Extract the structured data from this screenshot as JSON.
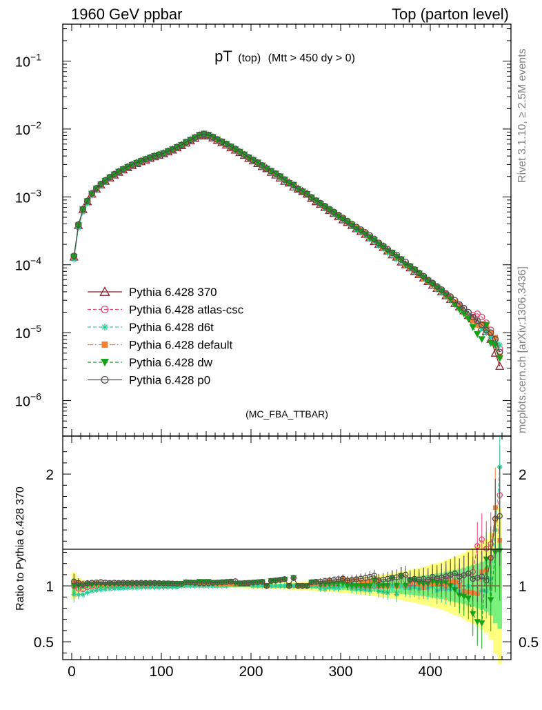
{
  "header": {
    "left": "1960 GeV ppbar",
    "right": "Top (parton level)"
  },
  "side_labels": {
    "rivet": "Rivet 3.1.10, ≥ 2.5M events",
    "mcplots": "mcplots.cern.ch [arXiv:1306.3436]"
  },
  "watermark": "(MC_FBA_TTBAR)",
  "plot_title": {
    "main": "pT",
    "sub1": "(top)",
    "sub2": "(Mtt > 450 dy > 0)"
  },
  "ratio_ylabel": "Ratio to Pythia 6.428 370",
  "colors": {
    "370": "#8b1a2b",
    "atlas-csc": "#e8456e",
    "d6t": "#2ecc9a",
    "default": "#f58231",
    "dw": "#16a21a",
    "p0": "#4d4d4d",
    "band_yellow": "#ffff80",
    "band_green": "#7cf07c"
  },
  "chart_data": [
    {
      "type": "line",
      "panel": "main",
      "yscale": "log",
      "xlim": [
        -10,
        490
      ],
      "ylim": [
        3e-07,
        0.35
      ],
      "yticks": [
        {
          "value": 1e-06,
          "label": "10",
          "exp": "−6"
        },
        {
          "value": 1e-05,
          "label": "10",
          "exp": "−5"
        },
        {
          "value": 0.0001,
          "label": "10",
          "exp": "−4"
        },
        {
          "value": 0.001,
          "label": "10",
          "exp": "−3"
        },
        {
          "value": 0.01,
          "label": "10",
          "exp": "−2"
        },
        {
          "value": 0.1,
          "label": "10",
          "exp": "−1"
        }
      ],
      "legend_position": "lower-left",
      "model": {
        "description_x": [
          2.5,
          7.5,
          12.5,
          17.5,
          22.5,
          27.5,
          32.5,
          37.5,
          42.5,
          47.5,
          52.5,
          57.5,
          62.5,
          67.5,
          72.5,
          77.5,
          82.5,
          87.5,
          92.5,
          97.5,
          102.5,
          107.5,
          112.5,
          117.5,
          122.5,
          127.5,
          132.5,
          137.5,
          142.5,
          147.5,
          152.5,
          157.5,
          162.5,
          167.5,
          172.5,
          177.5,
          182.5,
          187.5,
          192.5,
          197.5,
          202.5,
          207.5,
          212.5,
          217.5,
          222.5,
          227.5,
          232.5,
          237.5,
          242.5,
          247.5,
          252.5,
          257.5,
          262.5,
          267.5,
          272.5,
          277.5,
          282.5,
          287.5,
          292.5,
          297.5,
          302.5,
          307.5,
          312.5,
          317.5,
          322.5,
          327.5,
          332.5,
          337.5,
          342.5,
          347.5,
          352.5,
          357.5,
          362.5,
          367.5,
          372.5,
          377.5,
          382.5,
          387.5,
          392.5,
          397.5,
          402.5,
          407.5,
          412.5,
          417.5,
          422.5,
          427.5,
          432.5,
          437.5,
          442.5,
          447.5,
          452.5,
          457.5,
          462.5,
          467.5,
          472.5,
          477.5
        ]
      },
      "series": [
        {
          "name": "Pythia 6.428 370",
          "key": "370",
          "marker": "triangle-open",
          "dash": "solid",
          "values": [
            0.00013,
            0.00038,
            0.00065,
            0.00085,
            0.0011,
            0.0013,
            0.0015,
            0.0017,
            0.0019,
            0.0021,
            0.0023,
            0.0025,
            0.0027,
            0.0029,
            0.0031,
            0.0033,
            0.0035,
            0.0037,
            0.0039,
            0.0041,
            0.0043,
            0.0046,
            0.0049,
            0.0053,
            0.0057,
            0.0062,
            0.0067,
            0.0073,
            0.0079,
            0.0082,
            0.0079,
            0.0074,
            0.0068,
            0.0063,
            0.0058,
            0.0053,
            0.0049,
            0.0045,
            0.0041,
            0.0037,
            0.0034,
            0.0031,
            0.0028,
            0.0026,
            0.0023,
            0.0021,
            0.0019,
            0.0017,
            0.0016,
            0.0014,
            0.0013,
            0.0012,
            0.0011,
            0.00095,
            0.00085,
            0.00078,
            0.0007,
            0.00063,
            0.00057,
            0.00051,
            0.00046,
            0.00042,
            0.00038,
            0.00034,
            0.00031,
            0.00028,
            0.00025,
            0.00022,
            0.0002,
            0.00018,
            0.00016,
            0.00014,
            0.00013,
            0.00011,
            0.0001,
            9e-05,
            8e-05,
            7.2e-05,
            6.4e-05,
            5.7e-05,
            5e-05,
            4.5e-05,
            4e-05,
            3.5e-05,
            3.1e-05,
            2.7e-05,
            2.4e-05,
            2.1e-05,
            1.8e-05,
            1.6e-05,
            1.4e-05,
            1.2e-05,
            1.05e-05,
            8e-06,
            5e-06,
            3.2e-06
          ]
        },
        {
          "name": "Pythia 6.428 atlas-csc",
          "key": "atlas-csc",
          "marker": "circle-open",
          "dash": "dashed",
          "values": [
            0.00013,
            0.00037,
            0.00063,
            0.00084,
            0.0011,
            0.0013,
            0.0015,
            0.0017,
            0.0019,
            0.0021,
            0.0023,
            0.0025,
            0.0027,
            0.0029,
            0.0031,
            0.0033,
            0.0035,
            0.0037,
            0.0039,
            0.0041,
            0.0043,
            0.0046,
            0.0049,
            0.0053,
            0.0058,
            0.0063,
            0.0068,
            0.0074,
            0.008,
            0.0083,
            0.0081,
            0.0076,
            0.007,
            0.0065,
            0.006,
            0.0055,
            0.0051,
            0.0046,
            0.0042,
            0.0038,
            0.0035,
            0.0032,
            0.0029,
            0.0026,
            0.0024,
            0.0022,
            0.002,
            0.0018,
            0.0016,
            0.0015,
            0.0013,
            0.0012,
            0.0011,
            0.00098,
            0.00088,
            0.00079,
            0.00071,
            0.00064,
            0.00058,
            0.00053,
            0.00048,
            0.00043,
            0.00038,
            0.00034,
            0.00031,
            0.00028,
            0.00025,
            0.00022,
            0.0002,
            0.00018,
            0.00016,
            0.00015,
            0.00013,
            0.00012,
            0.0001,
            9.2e-05,
            8.2e-05,
            7.4e-05,
            6.8e-05,
            5.9e-05,
            5.3e-05,
            4.7e-05,
            4.3e-05,
            3.7e-05,
            3.3e-05,
            2.8e-05,
            2.5e-05,
            2.3e-05,
            2e-05,
            1.8e-05,
            1.9e-05,
            1.7e-05,
            1.4e-05,
            1.1e-05,
            8e-06,
            5.8e-06
          ]
        },
        {
          "name": "Pythia 6.428 d6t",
          "key": "d6t",
          "marker": "star",
          "dash": "dashed",
          "values": [
            0.00012,
            0.00035,
            0.0006,
            0.0008,
            0.00105,
            0.00125,
            0.00145,
            0.00165,
            0.00185,
            0.00205,
            0.00225,
            0.00245,
            0.00265,
            0.00285,
            0.00305,
            0.00325,
            0.00345,
            0.00365,
            0.00385,
            0.00405,
            0.00425,
            0.00455,
            0.00485,
            0.00525,
            0.0057,
            0.0062,
            0.0067,
            0.0073,
            0.0079,
            0.0082,
            0.0079,
            0.0074,
            0.0068,
            0.0063,
            0.0058,
            0.0054,
            0.005,
            0.0046,
            0.0042,
            0.0038,
            0.0034,
            0.0031,
            0.0028,
            0.0026,
            0.0023,
            0.0021,
            0.0019,
            0.0017,
            0.0016,
            0.0014,
            0.0013,
            0.0012,
            0.0011,
            0.00095,
            0.00085,
            0.00076,
            0.00068,
            0.00062,
            0.00056,
            0.0005,
            0.00046,
            0.00042,
            0.00037,
            0.00033,
            0.0003,
            0.00027,
            0.00024,
            0.00022,
            0.00019,
            0.00017,
            0.00015,
            0.00014,
            0.00012,
            0.00011,
            9.8e-05,
            8.8e-05,
            7.9e-05,
            7e-05,
            6.3e-05,
            5.6e-05,
            5e-05,
            4.3e-05,
            3.9e-05,
            3.4e-05,
            3e-05,
            2.7e-05,
            2.3e-05,
            2e-05,
            1.8e-05,
            1.5e-05,
            1.3e-05,
            1.15e-05,
            1e-05,
            8.5e-06,
            7.5e-06,
            6.6e-06
          ]
        },
        {
          "name": "Pythia 6.428 default",
          "key": "default",
          "marker": "square",
          "dash": "dashdot",
          "values": [
            0.000135,
            0.00039,
            0.00066,
            0.00087,
            0.00112,
            0.00133,
            0.00153,
            0.00173,
            0.00194,
            0.00214,
            0.00235,
            0.00256,
            0.00276,
            0.00297,
            0.00317,
            0.00338,
            0.00359,
            0.00379,
            0.004,
            0.0042,
            0.0044,
            0.0047,
            0.005,
            0.0054,
            0.0058,
            0.0064,
            0.0069,
            0.0075,
            0.0081,
            0.0084,
            0.0081,
            0.0076,
            0.0069,
            0.0064,
            0.0059,
            0.0054,
            0.005,
            0.0046,
            0.0042,
            0.0038,
            0.0035,
            0.0032,
            0.0029,
            0.0026,
            0.0024,
            0.0022,
            0.002,
            0.0018,
            0.0016,
            0.0015,
            0.0013,
            0.0012,
            0.0011,
            0.00097,
            0.00087,
            0.0008,
            0.00072,
            0.00066,
            0.00059,
            0.00053,
            0.00049,
            0.00044,
            0.0004,
            0.00036,
            0.00032,
            0.00029,
            0.00026,
            0.00023,
            0.00021,
            0.00018,
            0.00016,
            0.00015,
            0.00013,
            0.00012,
            0.0001,
            9.3e-05,
            8.4e-05,
            7.3e-05,
            6.3e-05,
            5.8e-05,
            5.1e-05,
            4.6e-05,
            4.1e-05,
            3.5e-05,
            3.2e-05,
            2.8e-05,
            2.4e-05,
            2e-05,
            1.7e-05,
            1.5e-05,
            1.3e-05,
            1.35e-05,
            1.2e-05,
            1e-05,
            8.5e-06,
            4.5e-06
          ]
        },
        {
          "name": "Pythia 6.428 dw",
          "key": "dw",
          "marker": "triangle-down",
          "dash": "dashed",
          "values": [
            0.00013,
            0.00038,
            0.00065,
            0.00086,
            0.00111,
            0.00132,
            0.00152,
            0.00172,
            0.00193,
            0.00213,
            0.00234,
            0.00254,
            0.00275,
            0.00295,
            0.00316,
            0.00336,
            0.00357,
            0.00377,
            0.00398,
            0.00418,
            0.00438,
            0.0047,
            0.005,
            0.0054,
            0.0058,
            0.0064,
            0.0069,
            0.0075,
            0.0082,
            0.0085,
            0.0082,
            0.0076,
            0.007,
            0.0065,
            0.006,
            0.0055,
            0.005,
            0.0046,
            0.0042,
            0.0038,
            0.0035,
            0.0032,
            0.0029,
            0.0026,
            0.0024,
            0.0022,
            0.002,
            0.0018,
            0.0016,
            0.0015,
            0.0013,
            0.0012,
            0.0011,
            0.00098,
            0.00088,
            0.00079,
            0.00071,
            0.00064,
            0.00058,
            0.00052,
            0.00047,
            0.00042,
            0.00038,
            0.00034,
            0.00031,
            0.00028,
            0.00025,
            0.00023,
            0.0002,
            0.00018,
            0.00016,
            0.00015,
            0.00013,
            0.00012,
            0.0001,
            9.4e-05,
            8.4e-05,
            7.4e-05,
            6.5e-05,
            5.8e-05,
            5.2e-05,
            4.6e-05,
            4.1e-05,
            3.6e-05,
            3.1e-05,
            2.6e-05,
            2.2e-05,
            1.9e-05,
            1.6e-05,
            1.2e-05,
            9.5e-06,
            8e-06,
            1.3e-05,
            7e-06,
            6.5e-06,
            4.2e-06
          ]
        },
        {
          "name": "Pythia 6.428 p0",
          "key": "p0",
          "marker": "circle-open",
          "dash": "solid",
          "values": [
            0.000135,
            0.00039,
            0.00066,
            0.00087,
            0.00113,
            0.00134,
            0.00155,
            0.00175,
            0.00195,
            0.00216,
            0.00236,
            0.00257,
            0.00277,
            0.00298,
            0.00318,
            0.00339,
            0.00359,
            0.0038,
            0.004,
            0.0042,
            0.0044,
            0.0047,
            0.005,
            0.0054,
            0.0058,
            0.0064,
            0.0069,
            0.0075,
            0.0081,
            0.0084,
            0.0081,
            0.0076,
            0.007,
            0.0065,
            0.006,
            0.0055,
            0.0051,
            0.0046,
            0.0042,
            0.0038,
            0.0035,
            0.0032,
            0.0029,
            0.0026,
            0.0024,
            0.0022,
            0.002,
            0.0018,
            0.0016,
            0.0015,
            0.0013,
            0.0012,
            0.0011,
            0.00098,
            0.00088,
            0.00081,
            0.00073,
            0.00066,
            0.0006,
            0.00054,
            0.00049,
            0.00044,
            0.0004,
            0.00036,
            0.00033,
            0.0003,
            0.00027,
            0.00024,
            0.00021,
            0.00019,
            0.00017,
            0.00015,
            0.00014,
            0.00012,
            0.00011,
            9.5e-05,
            8.5e-05,
            7.6e-05,
            6.8e-05,
            6e-05,
            5.4e-05,
            4.8e-05,
            4.3e-05,
            3.8e-05,
            3.4e-05,
            3e-05,
            2.6e-05,
            2.3e-05,
            2e-05,
            1.7e-05,
            1.5e-05,
            1.3e-05,
            1.1e-05,
            1e-05,
            8e-06,
            5.2e-06
          ]
        }
      ]
    },
    {
      "type": "line",
      "panel": "ratio",
      "ylabel": "Ratio to Pythia 6.428 370",
      "ylim": [
        0.34,
        2.34
      ],
      "yticks": [
        {
          "value": 0.5,
          "label": "0.5"
        },
        {
          "value": 1,
          "label": "1"
        },
        {
          "value": 2,
          "label": "2"
        }
      ],
      "xlim": [
        -10,
        490
      ],
      "xticks": [
        {
          "value": 0,
          "label": "0"
        },
        {
          "value": 100,
          "label": "100"
        },
        {
          "value": 200,
          "label": "200"
        },
        {
          "value": 300,
          "label": "300"
        },
        {
          "value": 400,
          "label": "400"
        }
      ]
    }
  ]
}
